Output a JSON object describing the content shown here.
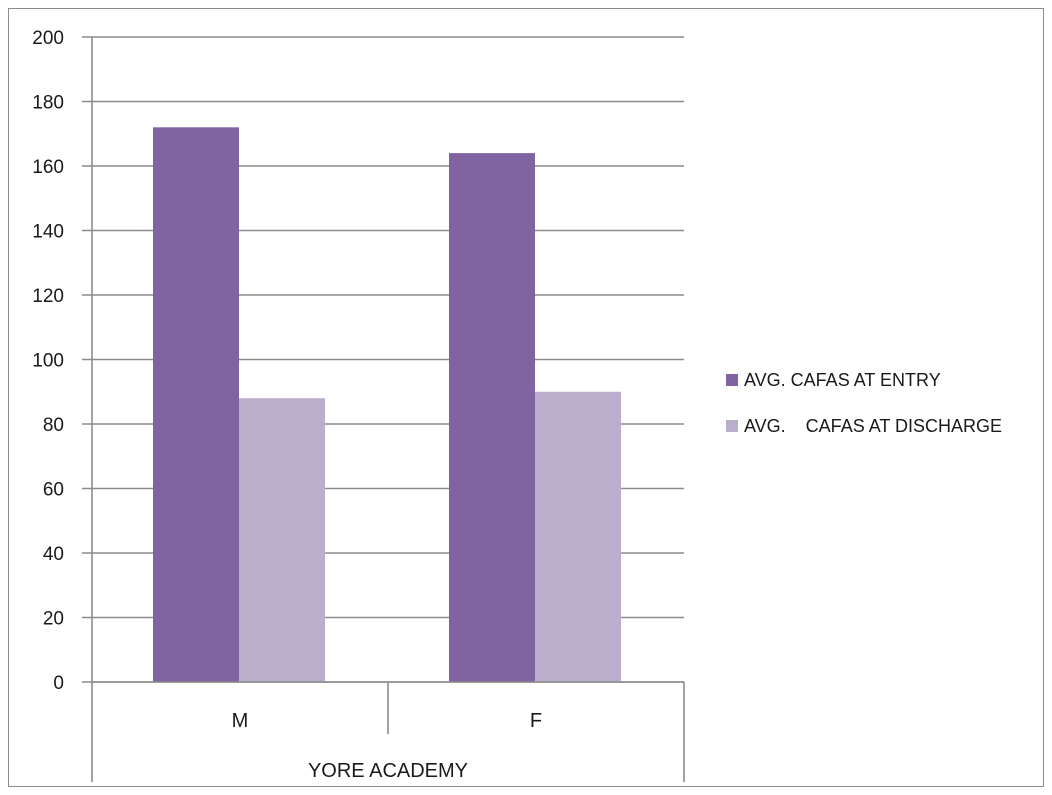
{
  "chart_data": {
    "type": "bar",
    "title": "",
    "xlabel": "",
    "ylabel": "",
    "group_label": "YORE ACADEMY",
    "categories": [
      "M",
      "F"
    ],
    "series": [
      {
        "name": "AVG. CAFAS AT ENTRY",
        "values": [
          172,
          164
        ],
        "color": "#8064a2"
      },
      {
        "name": "AVG.    CAFAS AT DISCHARGE",
        "values": [
          88,
          90
        ],
        "color": "#bbaecd"
      }
    ],
    "ylim": [
      0,
      200
    ],
    "yticks": [
      0,
      20,
      40,
      60,
      80,
      100,
      120,
      140,
      160,
      180,
      200
    ],
    "grid": true,
    "legend": "right"
  }
}
